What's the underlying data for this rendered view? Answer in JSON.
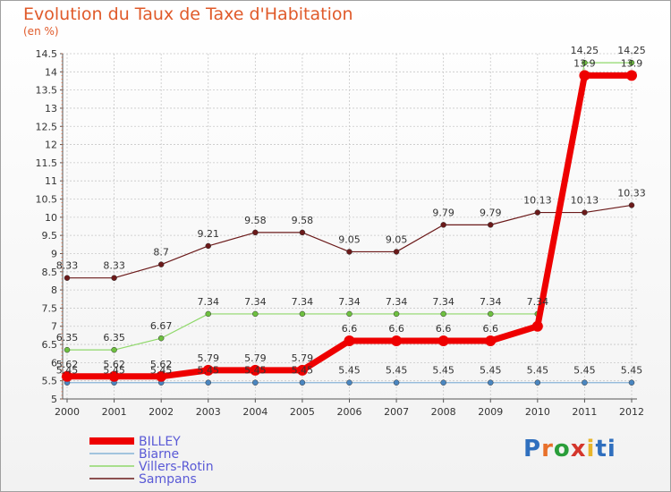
{
  "title": "Evolution du Taux de Taxe d'Habitation",
  "subtitle": "(en %)",
  "brand": "Proxiti",
  "colors": {
    "title": "#e05a2a",
    "grid": "#c8c8c8",
    "axis": "#555555"
  },
  "chart_data": {
    "type": "line",
    "x": [
      "2000",
      "2001",
      "2002",
      "2003",
      "2004",
      "2005",
      "2006",
      "2007",
      "2008",
      "2009",
      "2010",
      "2011",
      "2012"
    ],
    "ylim": [
      5,
      14.5
    ],
    "yticks": [
      5,
      5.5,
      6,
      6.5,
      7,
      7.5,
      8,
      8.5,
      9,
      9.5,
      10,
      10.5,
      11,
      11.5,
      12,
      12.5,
      13,
      13.5,
      14,
      14.5
    ],
    "yticks_text": [
      "5",
      "5.5",
      "6",
      "6.5",
      "7",
      "7.5",
      "8",
      "8.5",
      "9",
      "9.5",
      "10",
      "10.5",
      "11",
      "11.5",
      "12",
      "12.5",
      "13",
      "13.5",
      "14",
      "14.5"
    ],
    "grid": true,
    "legend_position": "bottom-left",
    "series": [
      {
        "name": "Sampans",
        "color": "#6b1a1a",
        "width": 1.2,
        "marker": 3,
        "values": [
          8.33,
          8.33,
          8.7,
          9.21,
          9.58,
          9.58,
          9.05,
          9.05,
          9.79,
          9.79,
          10.13,
          10.13,
          10.33
        ],
        "labels": [
          "8.33",
          "8.33",
          "8.7",
          "9.21",
          "9.58",
          "9.58",
          "9.05",
          "9.05",
          "9.79",
          "9.79",
          "10.13",
          "10.13",
          "10.33"
        ]
      },
      {
        "name": "Villers-Rotin",
        "color": "#8fd86a",
        "marker_color": "#6ec040",
        "width": 1.2,
        "marker": 3,
        "values": [
          6.35,
          6.35,
          6.67,
          7.34,
          7.34,
          7.34,
          7.34,
          7.34,
          7.34,
          7.34,
          7.34,
          14.25,
          14.25
        ],
        "labels": [
          "6.35",
          "6.35",
          "6.67",
          "7.34",
          "7.34",
          "7.34",
          "7.34",
          "7.34",
          "7.34",
          "7.34",
          "7.34",
          "14.25",
          "14.25"
        ]
      },
      {
        "name": "Biarne",
        "color": "#88b4d8",
        "marker_color": "#4a86c0",
        "width": 1.2,
        "marker": 3,
        "values": [
          5.45,
          5.45,
          5.45,
          5.45,
          5.45,
          5.45,
          5.45,
          5.45,
          5.45,
          5.45,
          5.45,
          5.45,
          5.45
        ],
        "labels": [
          "5.45",
          "5.45",
          "5.45",
          "5.45",
          "5.45",
          "5.45",
          "5.45",
          "5.45",
          "5.45",
          "5.45",
          "5.45",
          "5.45",
          "5.45"
        ]
      },
      {
        "name": "BILLEY",
        "color": "#ee0000",
        "width": 7,
        "marker": 6,
        "values": [
          5.62,
          5.62,
          5.62,
          5.79,
          5.79,
          5.79,
          6.6,
          6.6,
          6.6,
          6.6,
          7,
          13.9,
          13.9
        ],
        "labels": [
          "5.62",
          "5.62",
          "5.62",
          "5.79",
          "5.79",
          "5.79",
          "6.6",
          "6.6",
          "6.6",
          "6.6",
          "",
          "13.9",
          "13.9"
        ]
      }
    ],
    "legend_order": [
      "BILLEY",
      "Biarne",
      "Villers-Rotin",
      "Sampans"
    ]
  }
}
